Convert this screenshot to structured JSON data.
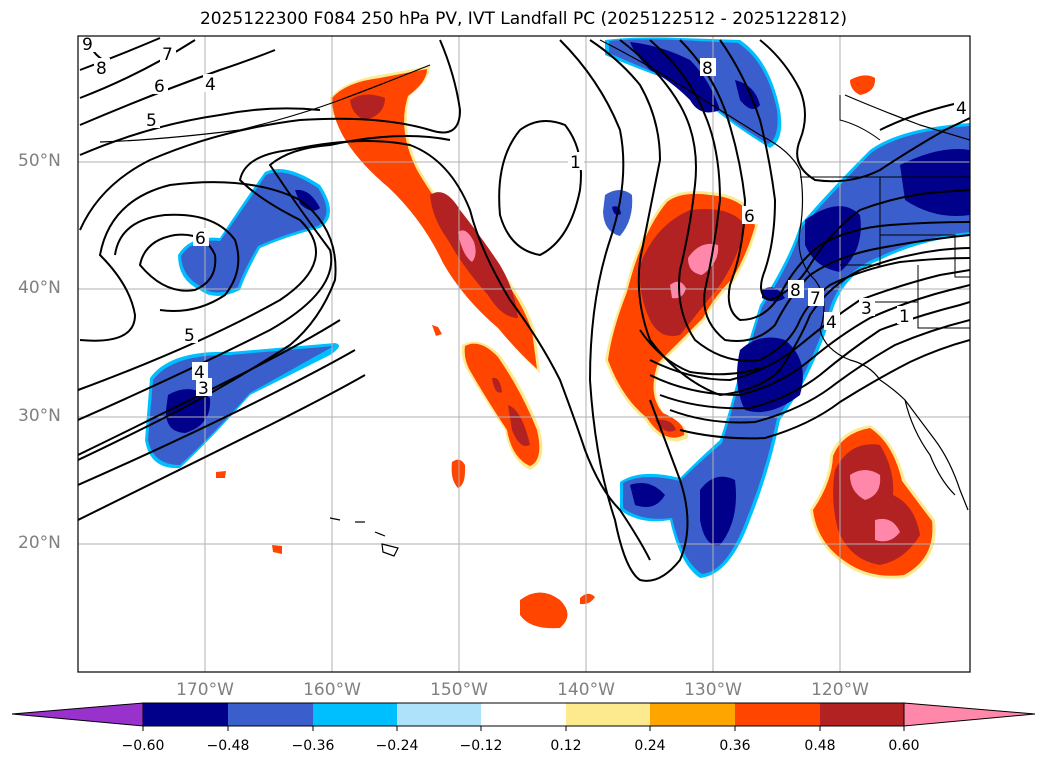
{
  "title": "2025122300 F084 250 hPa PV, IVT Landfall PC (2025122512 - 2025122812)",
  "map": {
    "lat_labels": [
      "50°N",
      "40°N",
      "30°N",
      "20°N"
    ],
    "lon_labels": [
      "170°W",
      "160°W",
      "150°W",
      "140°W",
      "130°W",
      "120°W"
    ],
    "contour_labels": [
      "9",
      "8",
      "7",
      "6",
      "5",
      "4",
      "6",
      "5",
      "4",
      "3",
      "1",
      "8",
      "6",
      "8",
      "7",
      "4",
      "3",
      "1",
      "4"
    ]
  },
  "colorbar": {
    "tick_labels": [
      "−0.60",
      "−0.48",
      "−0.36",
      "−0.24",
      "−0.12",
      "0.12",
      "0.24",
      "0.36",
      "0.48",
      "0.60"
    ],
    "colors": [
      "#9932cc",
      "#00008b",
      "#3a5fcd",
      "#00bfff",
      "#aee2fa",
      "#ffffff",
      "#fdea8f",
      "#ffa500",
      "#ff4500",
      "#b22222",
      "#ff88aa"
    ]
  }
}
